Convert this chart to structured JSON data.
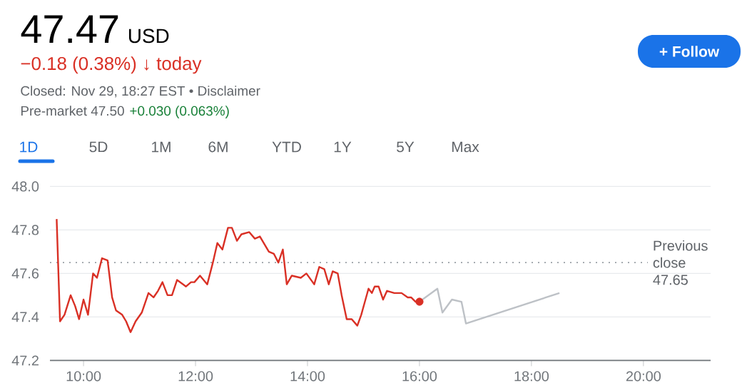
{
  "chart_data": {
    "type": "line",
    "title": "47.47",
    "annotations": [
      "USD",
      "−0.18 (0.38%) ↓ today",
      "Closed: Nov 29, 18:27 EST • Disclaimer",
      "Pre-market 47.50",
      "+0.030 (0.063%)",
      "+ Follow",
      "1D",
      "5D",
      "1M",
      "6M",
      "YTD",
      "1Y",
      "5Y",
      "Max"
    ],
    "series": [
      {
        "color": "#d93025",
        "x": [
          9.52,
          9.58,
          9.66,
          9.77,
          9.85,
          9.92,
          10.0,
          10.08,
          10.17,
          10.24,
          10.33,
          10.43,
          10.51,
          10.58,
          10.69,
          10.76,
          10.84,
          10.93,
          11.04,
          11.16,
          11.25,
          11.33,
          11.41,
          11.5,
          11.58,
          11.67,
          11.83,
          11.92,
          11.98,
          12.08,
          12.21,
          12.31,
          12.39,
          12.48,
          12.58,
          12.65,
          12.74,
          12.82,
          12.96,
          13.06,
          13.15,
          13.31,
          13.4,
          13.48,
          13.56,
          13.63,
          13.72,
          13.88,
          13.98,
          14.12,
          14.21,
          14.3,
          14.38,
          14.45,
          14.54,
          14.61,
          14.7,
          14.79,
          14.89,
          14.96,
          15.09,
          15.15,
          15.2,
          15.27,
          15.35,
          15.42,
          15.55,
          15.68,
          15.79,
          15.85,
          15.93,
          16.0
        ],
        "values": [
          47.85,
          47.38,
          47.41,
          47.5,
          47.45,
          47.39,
          47.48,
          47.41,
          47.6,
          47.58,
          47.67,
          47.66,
          47.49,
          47.43,
          47.41,
          47.38,
          47.33,
          47.38,
          47.42,
          47.51,
          47.49,
          47.52,
          47.56,
          47.5,
          47.5,
          47.57,
          47.54,
          47.56,
          47.56,
          47.59,
          47.55,
          47.65,
          47.74,
          47.71,
          47.81,
          47.81,
          47.75,
          47.78,
          47.79,
          47.76,
          47.77,
          47.7,
          47.69,
          47.65,
          47.71,
          47.55,
          47.59,
          47.58,
          47.6,
          47.55,
          47.63,
          47.62,
          47.55,
          47.61,
          47.6,
          47.5,
          47.39,
          47.39,
          47.36,
          47.41,
          47.53,
          47.51,
          47.54,
          47.54,
          47.48,
          47.52,
          47.51,
          47.51,
          47.49,
          47.49,
          47.47,
          47.47
        ]
      },
      {
        "color": "#bdc1c6",
        "x": [
          16.0,
          16.32,
          16.41,
          16.58,
          16.75,
          16.83,
          18.5
        ],
        "values": [
          47.47,
          47.53,
          47.42,
          47.48,
          47.47,
          47.37,
          47.51
        ]
      },
      {
        "type": "scatter",
        "color": "#d93025",
        "x": [
          16.0
        ],
        "values": [
          47.47
        ]
      }
    ],
    "xlim": [
      9.4,
      21.2
    ],
    "ylim": [
      47.2,
      48.0
    ],
    "xticks": [
      {
        "value": 10,
        "label": "10:00"
      },
      {
        "value": 12,
        "label": "12:00"
      },
      {
        "value": 14,
        "label": "14:00"
      },
      {
        "value": 16,
        "label": "16:00"
      },
      {
        "value": 18,
        "label": "18:00"
      },
      {
        "value": 20,
        "label": "20:00"
      }
    ],
    "yticks": [
      {
        "value": 47.2,
        "label": "47.2"
      },
      {
        "value": 47.4,
        "label": "47.4"
      },
      {
        "value": 47.6,
        "label": "47.6"
      },
      {
        "value": 47.8,
        "label": "47.8"
      },
      {
        "value": 48.0,
        "label": "48.0"
      }
    ],
    "grid": "y",
    "ref_lines": [
      {
        "axis": "y",
        "value": 47.65,
        "label": "Previous close 47.65",
        "color": "#9aa0a6",
        "line_style": "dotted"
      }
    ]
  }
}
